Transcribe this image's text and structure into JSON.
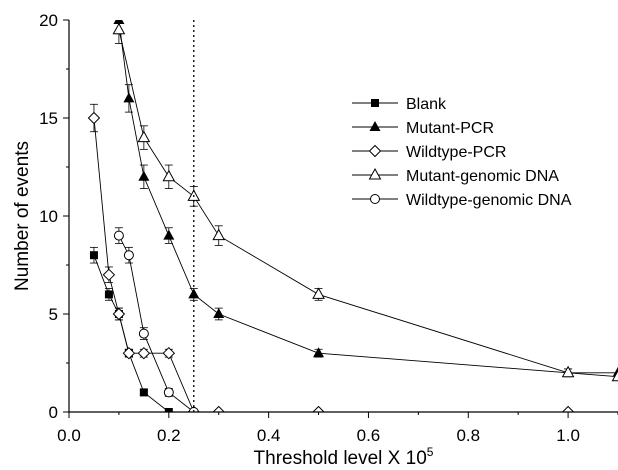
{
  "chart_data": {
    "type": "line",
    "xlabel": "Threshold level X 10",
    "xlabel_sup": "5",
    "ylabel": "Number of events",
    "xlim": [
      0.0,
      1.1
    ],
    "ylim": [
      0,
      20
    ],
    "x_ticks": [
      "0.0",
      "0.2",
      "0.4",
      "0.6",
      "0.8",
      "1.0"
    ],
    "y_ticks": [
      "0",
      "5",
      "10",
      "15",
      "20"
    ],
    "x_tick_values": [
      0.0,
      0.2,
      0.4,
      0.6,
      0.8,
      1.0
    ],
    "y_tick_values": [
      0,
      5,
      10,
      15,
      20
    ],
    "grid": false,
    "legend_position": "right",
    "reference_line": {
      "x": 0.25,
      "style": "dotted"
    },
    "series": [
      {
        "name": "Blank",
        "marker": "square-filled",
        "points": [
          [
            0.05,
            8
          ],
          [
            0.08,
            6
          ],
          [
            0.1,
            5
          ],
          [
            0.12,
            3
          ],
          [
            0.15,
            1
          ],
          [
            0.2,
            0
          ]
        ],
        "errors": [
          0.4,
          0.3,
          0.3,
          0.2,
          0.1,
          0.0
        ]
      },
      {
        "name": "Mutant-PCR",
        "marker": "triangle-filled",
        "points": [
          [
            0.08,
            21.5
          ],
          [
            0.1,
            20
          ],
          [
            0.12,
            16
          ],
          [
            0.15,
            12
          ],
          [
            0.2,
            9
          ],
          [
            0.25,
            6
          ],
          [
            0.3,
            5
          ],
          [
            0.5,
            3
          ],
          [
            1.0,
            2
          ],
          [
            1.1,
            2
          ]
        ],
        "errors": [
          0.0,
          0.7,
          0.7,
          0.6,
          0.4,
          0.3,
          0.3,
          0.2,
          0.2,
          0.0
        ]
      },
      {
        "name": "Wildtype-PCR",
        "marker": "diamond-open",
        "points": [
          [
            0.05,
            15
          ],
          [
            0.08,
            7
          ],
          [
            0.1,
            5
          ],
          [
            0.12,
            3
          ],
          [
            0.15,
            3
          ],
          [
            0.2,
            3
          ],
          [
            0.25,
            0
          ],
          [
            0.3,
            0
          ],
          [
            0.5,
            0
          ],
          [
            1.0,
            0
          ]
        ],
        "errors": [
          0.7,
          0.4,
          0.3,
          0.2,
          0.2,
          0.2,
          0.0,
          0.0,
          0.0,
          0.0
        ]
      },
      {
        "name": "Mutant-genomic DNA",
        "marker": "triangle-open",
        "points": [
          [
            0.1,
            19.5
          ],
          [
            0.15,
            14
          ],
          [
            0.2,
            12
          ],
          [
            0.25,
            11
          ],
          [
            0.3,
            9
          ],
          [
            0.5,
            6
          ],
          [
            1.0,
            2
          ],
          [
            1.1,
            1.8
          ]
        ],
        "errors": [
          0.7,
          0.6,
          0.6,
          0.5,
          0.5,
          0.3,
          0.2,
          0.0
        ]
      },
      {
        "name": "Wildtype-genomic DNA",
        "marker": "circle-open",
        "points": [
          [
            0.1,
            9
          ],
          [
            0.12,
            8
          ],
          [
            0.15,
            4
          ],
          [
            0.2,
            1
          ],
          [
            0.25,
            0
          ]
        ],
        "errors": [
          0.4,
          0.4,
          0.3,
          0.2,
          0.0
        ]
      }
    ]
  }
}
